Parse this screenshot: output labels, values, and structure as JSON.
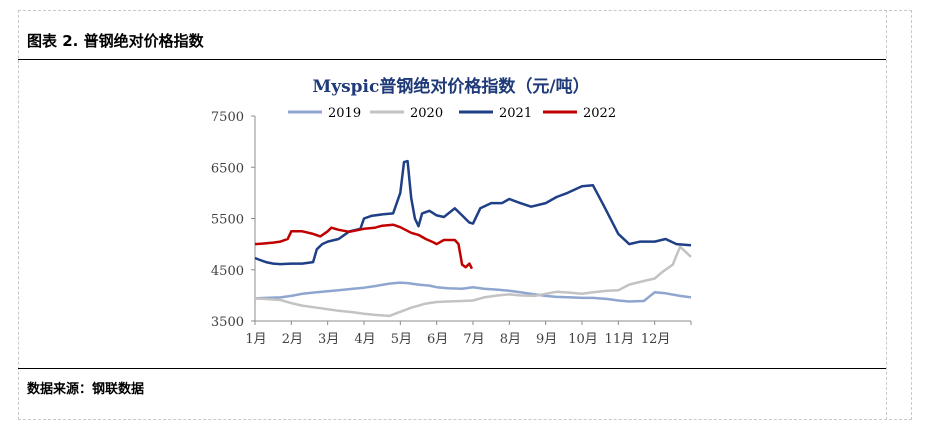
{
  "figure_title": "图表 2. 普钢绝对价格指数",
  "source": "数据来源：钢联数据",
  "chart_data": {
    "type": "line",
    "title": "Myspic普钢绝对价格指数（元/吨）",
    "xlabel": "",
    "ylabel": "",
    "categories": [
      "1月",
      "2月",
      "3月",
      "4月",
      "5月",
      "6月",
      "7月",
      "8月",
      "9月",
      "10月",
      "11月",
      "12月"
    ],
    "ylim": [
      3500,
      7500
    ],
    "yticks": [
      3500,
      4500,
      5500,
      6500,
      7500
    ],
    "legend_position": "top",
    "grid": false,
    "series": [
      {
        "name": "2019",
        "color": "#8ea6cf",
        "x": [
          1,
          1.3,
          1.7,
          2,
          2.3,
          2.7,
          3,
          3.3,
          3.7,
          4,
          4.3,
          4.7,
          5,
          5.2,
          5.5,
          5.8,
          6,
          6.3,
          6.7,
          7,
          7.3,
          7.7,
          8,
          8.3,
          8.7,
          9,
          9.3,
          9.7,
          10,
          10.3,
          10.7,
          11,
          11.3,
          11.7,
          12,
          12.3,
          12.7,
          13
        ],
        "values": [
          3940,
          3950,
          3960,
          3990,
          4030,
          4060,
          4080,
          4100,
          4130,
          4150,
          4180,
          4230,
          4250,
          4240,
          4210,
          4190,
          4160,
          4140,
          4130,
          4160,
          4130,
          4110,
          4090,
          4060,
          4020,
          3990,
          3970,
          3960,
          3950,
          3950,
          3930,
          3900,
          3880,
          3890,
          4060,
          4040,
          3990,
          3960
        ]
      },
      {
        "name": "2020",
        "color": "#c3c3c3",
        "x": [
          1,
          1.3,
          1.7,
          2,
          2.3,
          2.7,
          3,
          3.3,
          3.7,
          4,
          4.3,
          4.7,
          5,
          5.3,
          5.7,
          6,
          6.3,
          6.7,
          7,
          7.3,
          7.7,
          8,
          8.3,
          8.7,
          9,
          9.3,
          9.7,
          10,
          10.3,
          10.7,
          11,
          11.3,
          11.7,
          12,
          12.2,
          12.5,
          12.7,
          13
        ],
        "values": [
          3940,
          3930,
          3910,
          3850,
          3800,
          3760,
          3730,
          3700,
          3670,
          3640,
          3620,
          3600,
          3680,
          3760,
          3840,
          3870,
          3880,
          3890,
          3900,
          3960,
          4000,
          4020,
          4000,
          3990,
          4030,
          4070,
          4050,
          4030,
          4060,
          4090,
          4100,
          4210,
          4280,
          4330,
          4450,
          4600,
          4950,
          4750
        ]
      },
      {
        "name": "2021",
        "color": "#1f3f86",
        "x": [
          1,
          1.1,
          1.3,
          1.5,
          1.7,
          2,
          2.3,
          2.6,
          2.7,
          2.85,
          3,
          3.3,
          3.6,
          3.9,
          4,
          4.2,
          4.5,
          4.8,
          5,
          5.1,
          5.2,
          5.3,
          5.4,
          5.5,
          5.6,
          5.8,
          6,
          6.2,
          6.5,
          6.7,
          6.9,
          7,
          7.2,
          7.5,
          7.8,
          8,
          8.3,
          8.6,
          9,
          9.3,
          9.6,
          10,
          10.3,
          10.6,
          11,
          11.3,
          11.6,
          12,
          12.3,
          12.6,
          13
        ],
        "values": [
          4730,
          4700,
          4650,
          4620,
          4610,
          4620,
          4620,
          4650,
          4900,
          5000,
          5050,
          5100,
          5250,
          5300,
          5500,
          5550,
          5580,
          5600,
          6000,
          6600,
          6620,
          5900,
          5500,
          5350,
          5600,
          5650,
          5560,
          5530,
          5700,
          5560,
          5420,
          5400,
          5700,
          5800,
          5800,
          5880,
          5800,
          5730,
          5800,
          5920,
          6000,
          6130,
          6150,
          5750,
          5200,
          5000,
          5050,
          5050,
          5100,
          5000,
          4980
        ]
      },
      {
        "name": "2022",
        "color": "#c00000",
        "x": [
          1,
          1.2,
          1.5,
          1.7,
          1.9,
          2,
          2.3,
          2.6,
          2.8,
          3,
          3.1,
          3.3,
          3.6,
          3.8,
          4,
          4.3,
          4.5,
          4.8,
          5,
          5.3,
          5.5,
          5.7,
          5.9,
          6,
          6.2,
          6.5,
          6.6,
          6.7,
          6.8,
          6.9,
          6.97
        ],
        "values": [
          5000,
          5010,
          5030,
          5050,
          5100,
          5250,
          5250,
          5200,
          5150,
          5250,
          5320,
          5280,
          5240,
          5270,
          5300,
          5320,
          5360,
          5380,
          5330,
          5220,
          5180,
          5100,
          5040,
          5000,
          5080,
          5080,
          5000,
          4600,
          4550,
          4620,
          4520
        ]
      }
    ]
  }
}
